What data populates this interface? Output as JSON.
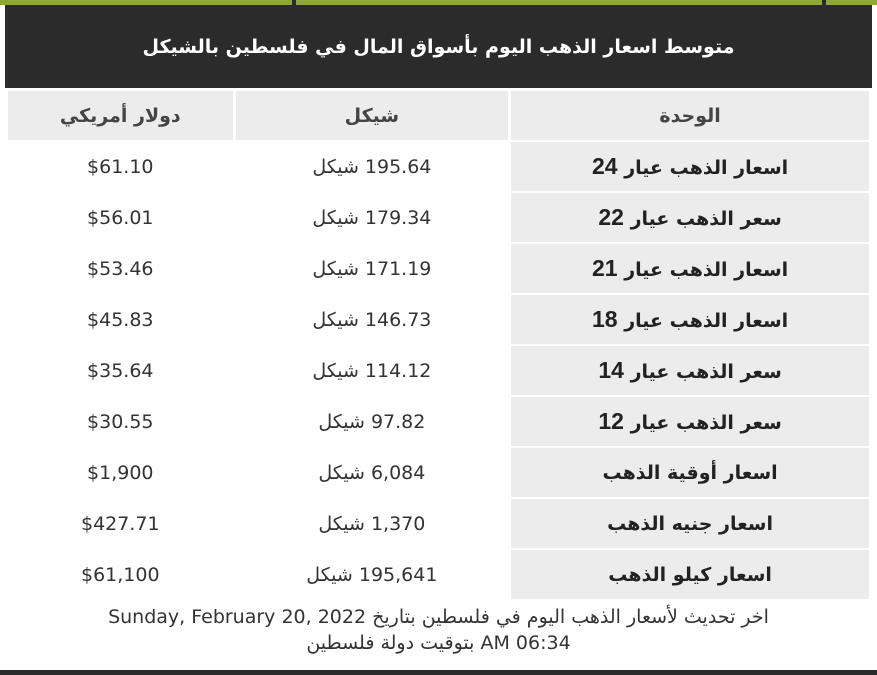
{
  "title": "متوسط اسعار الذهب اليوم بأسواق المال في فلسطين بالشيكل",
  "headers": {
    "unit": "الوحدة",
    "ils": "شيكل",
    "usd": "دولار أمريكي"
  },
  "rows": [
    {
      "unit": "اسعار الذهب عيار",
      "karat": "24",
      "ils": "195.64 شيكل",
      "usd": "$61.10"
    },
    {
      "unit": "سعر الذهب عيار",
      "karat": "22",
      "ils": "179.34 شيكل",
      "usd": "$56.01"
    },
    {
      "unit": "اسعار الذهب عيار",
      "karat": "21",
      "ils": "171.19 شيكل",
      "usd": "$53.46"
    },
    {
      "unit": "اسعار الذهب عيار",
      "karat": "18",
      "ils": "146.73 شيكل",
      "usd": "$45.83"
    },
    {
      "unit": "سعر الذهب عيار",
      "karat": "14",
      "ils": "114.12 شيكل",
      "usd": "$35.64"
    },
    {
      "unit": "سعر الذهب عيار",
      "karat": "12",
      "ils": "97.82 شيكل",
      "usd": "$30.55"
    },
    {
      "unit": "اسعار أوقية الذهب",
      "karat": "",
      "ils": "6,084 شيكل",
      "usd": "$1,900"
    },
    {
      "unit": "اسعار جنيه الذهب",
      "karat": "",
      "ils": "1,370 شيكل",
      "usd": "$427.71"
    },
    {
      "unit": "اسعار كيلو الذهب",
      "karat": "",
      "ils": "195,641 شيكل",
      "usd": "$61,100"
    }
  ],
  "footer": {
    "line1": "اخر تحديث لأسعار الذهب اليوم في فلسطين بتاريخ Sunday, February 20, 2022",
    "line2": "06:34 AM بتوقيت دولة فلسطين"
  },
  "colors": {
    "header_bg": "#2b2b2b",
    "cell_gray": "#ececec",
    "accent": "#8fa640"
  }
}
